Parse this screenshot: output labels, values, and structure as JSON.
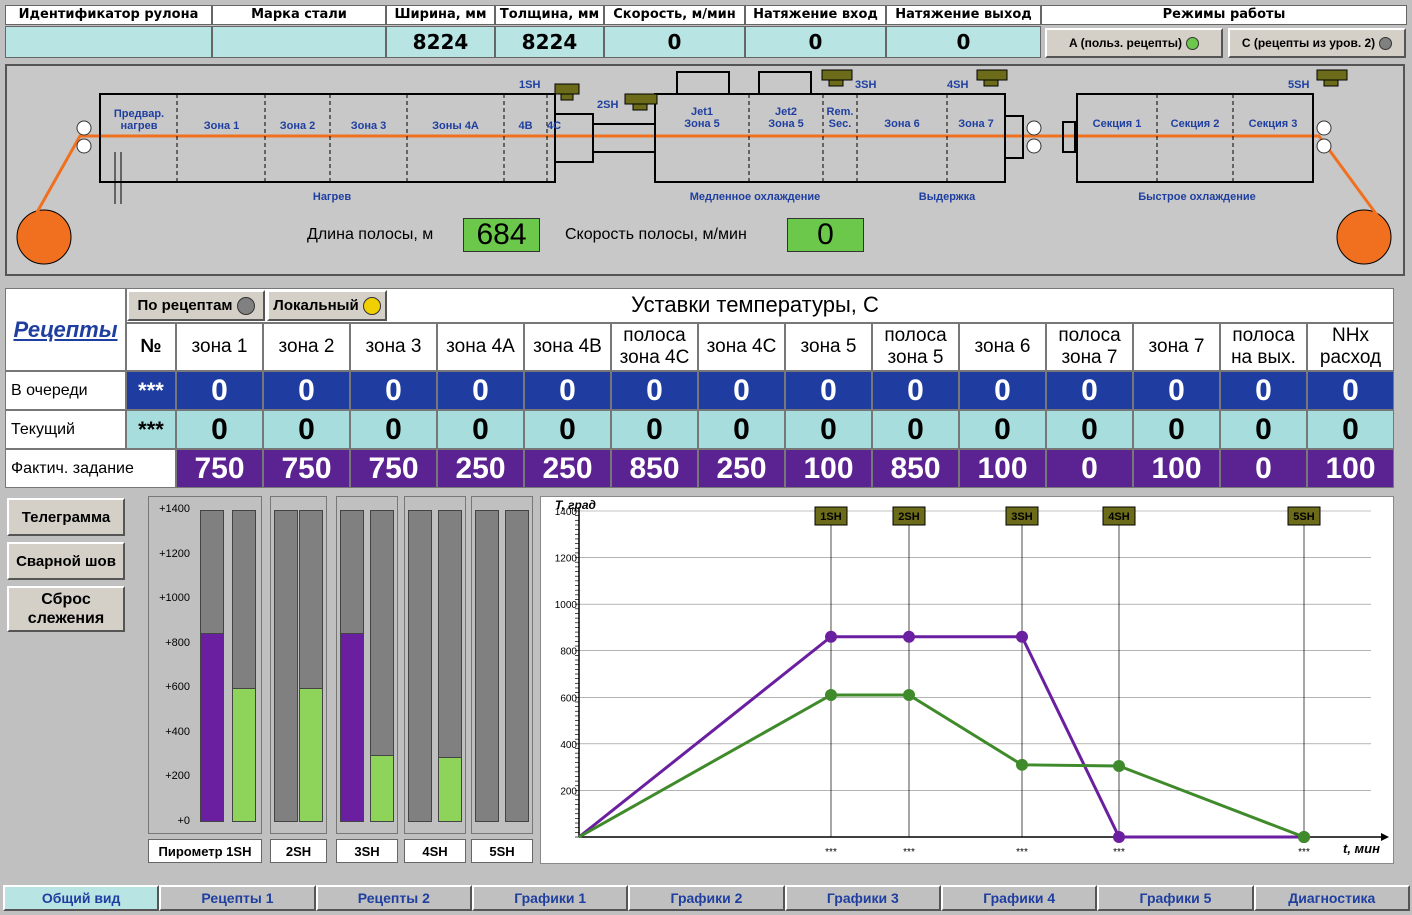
{
  "header": {
    "columns": [
      "Идентификатор рулона",
      "Марка стали",
      "Ширина, мм",
      "Толщина, мм",
      "Скорость, м/мин",
      "Натяжение вход",
      "Натяжение выход",
      "Режимы работы"
    ],
    "values": [
      "",
      "",
      "8224",
      "8224",
      "0",
      "0",
      "0"
    ],
    "mode_buttons": [
      "A (польз. рецепты)",
      "C (рецепты из уров. 2)"
    ],
    "mode_led_colors": [
      "#6bc84a",
      "#808080"
    ]
  },
  "diagram": {
    "zones_heating": [
      "Предвар.\nнагрев",
      "Зона 1",
      "Зона 2",
      "Зона 3",
      "Зоны 4A",
      "4B",
      "4C"
    ],
    "zones_slow": [
      "Jet1\nЗона 5",
      "Jet2\nЗона 5",
      "Rem.\nSec."
    ],
    "zones_hold": [
      "Зона 6",
      "Зона 7"
    ],
    "zones_fast": [
      "Секция 1",
      "Секция 2",
      "Секция 3"
    ],
    "section_labels": [
      "Нагрев",
      "Медленное охлаждение",
      "Выдержка",
      "Быстрое охлаждение"
    ],
    "sh_labels": [
      "1SH",
      "2SH",
      "3SH",
      "4SH",
      "5SH"
    ],
    "strip_length_label": "Длина полосы, м",
    "strip_length_value": "684",
    "strip_speed_label": "Скорость полосы, м/мин",
    "strip_speed_value": "0",
    "strip_color": "#f07020"
  },
  "recipes": {
    "title": "Рецепты",
    "btn_recipe": "По рецептам",
    "btn_local": "Локальный",
    "led_recipe": "#808080",
    "led_local": "#f0d000",
    "setpoints_title": "Уставки температуры, С",
    "col_no": "№",
    "columns": [
      "зона 1",
      "зона 2",
      "зона 3",
      "зона 4A",
      "зона 4B",
      "полоса\nзона 4C",
      "зона 4C",
      "зона 5",
      "полоса\nзона 5",
      "зона 6",
      "полоса\nзона 7",
      "зона 7",
      "полоса\nна вых.",
      "NHx\nрасход"
    ],
    "rows": [
      {
        "label": "В очереди",
        "no": "***",
        "values": [
          "0",
          "0",
          "0",
          "0",
          "0",
          "0",
          "0",
          "0",
          "0",
          "0",
          "0",
          "0",
          "0",
          "0"
        ]
      },
      {
        "label": "Текущий",
        "no": "***",
        "values": [
          "0",
          "0",
          "0",
          "0",
          "0",
          "0",
          "0",
          "0",
          "0",
          "0",
          "0",
          "0",
          "0",
          "0"
        ]
      },
      {
        "label": "Фактич. задание",
        "no": "",
        "values": [
          "750",
          "750",
          "750",
          "250",
          "250",
          "850",
          "250",
          "100",
          "850",
          "100",
          "0",
          "100",
          "0",
          "100"
        ]
      }
    ]
  },
  "side_buttons": [
    "Телеграмма",
    "Сварной шов",
    "Сброс\nслежения"
  ],
  "pyrometers": {
    "ticks": [
      "+1400",
      "+1200",
      "+1000",
      "+800",
      "+600",
      "+400",
      "+200",
      "+0"
    ],
    "labels": [
      "Пирометр 1SH",
      "2SH",
      "3SH",
      "4SH",
      "5SH"
    ],
    "max": 1400,
    "groups": [
      {
        "purple": 850,
        "green": 600
      },
      {
        "purple": 0,
        "green": 600
      },
      {
        "purple": 850,
        "green": 300
      },
      {
        "purple": 0,
        "green": 290
      },
      {
        "purple": 0,
        "green": 0
      }
    ],
    "colors": {
      "purple": "#6a1fa0",
      "green": "#8ed45a",
      "bg": "#808080"
    }
  },
  "chart_data": {
    "type": "line",
    "ylabel": "T, град",
    "xlabel": "t, мин",
    "ylim": [
      0,
      1400
    ],
    "yticks": [
      "1400",
      "1200",
      "1000",
      "800",
      "600",
      "400",
      "200"
    ],
    "markers": [
      "1SH",
      "2SH",
      "3SH",
      "4SH",
      "5SH"
    ],
    "marker_values": [
      "***",
      "***",
      "***",
      "***",
      "***"
    ],
    "series": [
      {
        "color": "#6a1fa0",
        "points": [
          [
            0,
            0
          ],
          [
            1,
            860
          ],
          [
            2,
            860
          ],
          [
            3,
            860
          ],
          [
            4,
            0
          ],
          [
            5,
            0
          ]
        ]
      },
      {
        "color": "#3f8a2a",
        "points": [
          [
            0,
            0
          ],
          [
            1,
            610
          ],
          [
            2,
            610
          ],
          [
            3,
            310
          ],
          [
            4,
            305
          ],
          [
            5,
            0
          ]
        ]
      }
    ]
  },
  "tabs": [
    "Общий вид",
    "Рецепты 1",
    "Рецепты 2",
    "Графики 1",
    "Графики 2",
    "Графики 3",
    "Графики 4",
    "Графики 5",
    "Диагностика"
  ]
}
